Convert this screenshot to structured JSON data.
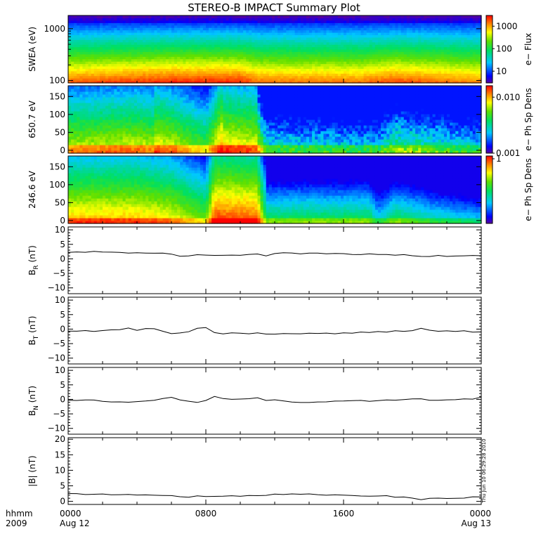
{
  "title": "STEREO-B IMPACT Summary Plot",
  "stamp": "Thu Jun 10 06:29:28 2010",
  "x_axis": {
    "label_top": "hhmm",
    "label_bottom": "2009",
    "ticks": [
      {
        "h": 0,
        "top": "0000",
        "bottom": "Aug 12"
      },
      {
        "h": 8,
        "top": "0800",
        "bottom": ""
      },
      {
        "h": 16,
        "top": "1600",
        "bottom": ""
      },
      {
        "h": 24,
        "top": "0000",
        "bottom": "Aug 13"
      }
    ]
  },
  "spectrograms": [
    {
      "id": "swea",
      "ylabel": "SWEA (eV)",
      "yscale": "log",
      "ylim": [
        90,
        1800
      ],
      "yticks": [
        {
          "v": 100,
          "label": "100"
        },
        {
          "v": 1000,
          "label": "1000"
        }
      ],
      "colorbar_label": "e− Flux",
      "colorbar_scale": "log",
      "colorbar_range": [
        3,
        3000
      ],
      "colorbar_ticks": [
        {
          "v": 10,
          "label": "10"
        },
        {
          "v": 100,
          "label": "100"
        },
        {
          "v": 1000,
          "label": "1000"
        }
      ]
    },
    {
      "id": "pad650",
      "ylabel": "650.7 eV",
      "yscale": "linear",
      "ylim": [
        -8,
        180
      ],
      "yticks": [
        {
          "v": 0,
          "label": "0"
        },
        {
          "v": 50,
          "label": "50"
        },
        {
          "v": 100,
          "label": "100"
        },
        {
          "v": 150,
          "label": "150"
        }
      ],
      "colorbar_label": "e− Ph Sp Dens",
      "colorbar_scale": "log",
      "colorbar_range": [
        0.001,
        0.016
      ],
      "colorbar_ticks": [
        {
          "v": 0.001,
          "label": "0.001"
        },
        {
          "v": 0.01,
          "label": "0.010"
        }
      ]
    },
    {
      "id": "pad246",
      "ylabel": "246.6 eV",
      "yscale": "linear",
      "ylim": [
        -8,
        180
      ],
      "yticks": [
        {
          "v": 0,
          "label": "0"
        },
        {
          "v": 50,
          "label": "50"
        },
        {
          "v": 100,
          "label": "100"
        },
        {
          "v": 150,
          "label": "150"
        }
      ],
      "colorbar_label": "e− Ph Sp Dens",
      "colorbar_scale": "linear",
      "colorbar_range": [
        0,
        1
      ],
      "colorbar_ticks": [
        {
          "v": 1,
          "label": "1"
        }
      ]
    }
  ],
  "chart_data": [
    {
      "type": "heatmap",
      "ylabel": "SWEA (eV)",
      "description_values": "e- Flux spectrogram, 0000 Aug 12 to 0000 Aug 13 2009; flux highest at low energy (~100 eV), decreasing to ~10 near 1500 eV",
      "zlabel": "e− Flux"
    },
    {
      "type": "heatmap",
      "ylabel": "650.7 eV",
      "zlabel": "e− Ph Sp Dens"
    },
    {
      "type": "heatmap",
      "ylabel": "246.6 eV",
      "zlabel": "e− Ph Sp Dens"
    },
    {
      "type": "line",
      "ylabel_main": "B",
      "ylabel_sub": "R",
      "ylabel_unit": " (nT)",
      "ylim": [
        -12,
        11
      ],
      "yticks": [
        {
          "v": -10,
          "label": "−10"
        },
        {
          "v": -5,
          "label": "−5"
        },
        {
          "v": 0,
          "label": "0"
        },
        {
          "v": 5,
          "label": "5"
        },
        {
          "v": 10,
          "label": "10"
        }
      ],
      "x": [
        0,
        0.5,
        1,
        1.5,
        2,
        2.5,
        3,
        3.5,
        4,
        4.5,
        5,
        5.5,
        6,
        6.5,
        7,
        7.5,
        8,
        8.5,
        9,
        9.5,
        10,
        10.5,
        11,
        11.5,
        12,
        12.5,
        13,
        13.5,
        14,
        14.5,
        15,
        15.5,
        16,
        16.5,
        17,
        17.5,
        18,
        18.5,
        19,
        19.5,
        20,
        20.5,
        21,
        21.5,
        22,
        22.5,
        23,
        23.5,
        24
      ],
      "y": [
        2.3,
        2.4,
        2.3,
        2.5,
        2.3,
        2.2,
        2.2,
        2.1,
        2.0,
        2.1,
        2.0,
        1.9,
        1.6,
        1.0,
        1.1,
        1.5,
        1.3,
        1.2,
        1.3,
        1.4,
        1.3,
        1.5,
        1.6,
        1.1,
        1.9,
        2.2,
        1.9,
        1.8,
        1.9,
        2.0,
        1.7,
        1.8,
        1.8,
        1.6,
        1.5,
        1.7,
        1.4,
        1.6,
        1.2,
        1.5,
        1.1,
        0.8,
        0.9,
        1.3,
        0.9,
        1.0,
        1.1,
        1.2,
        1.1
      ]
    },
    {
      "type": "line",
      "ylabel_main": "B",
      "ylabel_sub": "T",
      "ylabel_unit": " (nT)",
      "ylim": [
        -12,
        11
      ],
      "yticks": [
        {
          "v": -10,
          "label": "−10"
        },
        {
          "v": -5,
          "label": "−5"
        },
        {
          "v": 0,
          "label": "0"
        },
        {
          "v": 5,
          "label": "5"
        },
        {
          "v": 10,
          "label": "10"
        }
      ],
      "x": [
        0,
        0.5,
        1,
        1.5,
        2,
        2.5,
        3,
        3.5,
        4,
        4.5,
        5,
        5.5,
        6,
        6.5,
        7,
        7.5,
        8,
        8.5,
        9,
        9.5,
        10,
        10.5,
        11,
        11.5,
        12,
        12.5,
        13,
        13.5,
        14,
        14.5,
        15,
        15.5,
        16,
        16.5,
        17,
        17.5,
        18,
        18.5,
        19,
        19.5,
        20,
        20.5,
        21,
        21.5,
        22,
        22.5,
        23,
        23.5,
        24
      ],
      "y": [
        -0.6,
        -0.8,
        -0.5,
        -0.7,
        -0.4,
        -0.2,
        -0.3,
        0.4,
        -0.3,
        0.2,
        0.1,
        -0.8,
        -1.6,
        -1.2,
        -0.9,
        0.3,
        0.6,
        -1.2,
        -1.6,
        -1.4,
        -1.5,
        -1.6,
        -1.4,
        -1.7,
        -1.8,
        -1.5,
        -1.7,
        -1.6,
        -1.4,
        -1.5,
        -1.3,
        -1.6,
        -1.4,
        -1.3,
        -1.1,
        -1.2,
        -0.9,
        -1.0,
        -0.6,
        -0.7,
        -0.6,
        0.3,
        -0.4,
        -0.7,
        -0.5,
        -0.9,
        -0.6,
        -1.1,
        -0.9
      ]
    },
    {
      "type": "line",
      "ylabel_main": "B",
      "ylabel_sub": "N",
      "ylabel_unit": " (nT)",
      "ylim": [
        -12,
        11
      ],
      "yticks": [
        {
          "v": -10,
          "label": "−10"
        },
        {
          "v": -5,
          "label": "−5"
        },
        {
          "v": 0,
          "label": "0"
        },
        {
          "v": 5,
          "label": "5"
        },
        {
          "v": 10,
          "label": "10"
        }
      ],
      "x": [
        0,
        0.5,
        1,
        1.5,
        2,
        2.5,
        3,
        3.5,
        4,
        4.5,
        5,
        5.5,
        6,
        6.5,
        7,
        7.5,
        8,
        8.5,
        9,
        9.5,
        10,
        10.5,
        11,
        11.5,
        12,
        12.5,
        13,
        13.5,
        14,
        14.5,
        15,
        15.5,
        16,
        16.5,
        17,
        17.5,
        18,
        18.5,
        19,
        19.5,
        20,
        20.5,
        21,
        21.5,
        22,
        22.5,
        23,
        23.5,
        24
      ],
      "y": [
        -0.2,
        -0.3,
        -0.1,
        -0.3,
        -0.6,
        -0.8,
        -0.9,
        -1.1,
        -0.8,
        -0.7,
        -0.4,
        0.3,
        0.6,
        -0.2,
        -0.6,
        -1.1,
        -0.4,
        1.0,
        0.4,
        -0.1,
        0.0,
        0.2,
        0.5,
        -0.4,
        -0.2,
        -0.6,
        -0.9,
        -1.0,
        -1.2,
        -1.0,
        -0.9,
        -0.7,
        -0.6,
        -0.5,
        -0.4,
        -0.6,
        -0.5,
        -0.3,
        -0.4,
        0.0,
        0.3,
        0.1,
        -0.3,
        -0.2,
        -0.1,
        -0.2,
        0.1,
        0.2,
        0.8
      ]
    },
    {
      "type": "line",
      "ylabel_main": "|B|",
      "ylabel_sub": "",
      "ylabel_unit": " (nT)",
      "ylim": [
        -1,
        20.5
      ],
      "yticks": [
        {
          "v": 0,
          "label": "0"
        },
        {
          "v": 5,
          "label": "5"
        },
        {
          "v": 10,
          "label": "10"
        },
        {
          "v": 15,
          "label": "15"
        },
        {
          "v": 20,
          "label": "20"
        }
      ],
      "x": [
        0,
        0.5,
        1,
        1.5,
        2,
        2.5,
        3,
        3.5,
        4,
        4.5,
        5,
        5.5,
        6,
        6.5,
        7,
        7.5,
        8,
        8.5,
        9,
        9.5,
        10,
        10.5,
        11,
        11.5,
        12,
        12.5,
        13,
        13.5,
        14,
        14.5,
        15,
        15.5,
        16,
        16.5,
        17,
        17.5,
        18,
        18.5,
        19,
        19.5,
        20,
        20.5,
        21,
        21.5,
        22,
        22.5,
        23,
        23.5,
        24
      ],
      "y": [
        2.4,
        2.4,
        2.3,
        2.4,
        2.3,
        2.2,
        2.2,
        2.3,
        2.0,
        2.1,
        1.9,
        1.8,
        1.8,
        1.4,
        1.3,
        1.7,
        1.6,
        1.5,
        1.6,
        1.7,
        1.6,
        1.8,
        1.9,
        2.0,
        2.3,
        2.3,
        2.3,
        2.2,
        2.3,
        2.2,
        2.0,
        2.1,
        2.0,
        1.9,
        1.8,
        1.7,
        1.6,
        1.7,
        1.4,
        1.3,
        1.1,
        0.6,
        0.9,
        1.1,
        0.8,
        0.9,
        1.1,
        1.5,
        1.3
      ]
    }
  ]
}
